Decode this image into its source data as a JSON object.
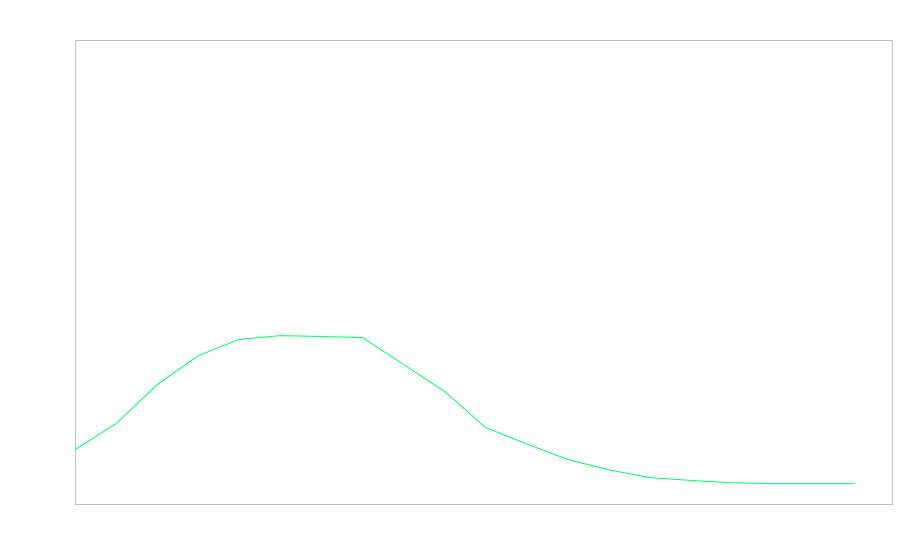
{
  "chart_data": {
    "type": "line",
    "title": "",
    "xlabel": "",
    "ylabel": "",
    "x": [
      0,
      1,
      2,
      3,
      4,
      5,
      6,
      7,
      8,
      9,
      10,
      11,
      12,
      13,
      14,
      15,
      16,
      17,
      18,
      19
    ],
    "series": [
      {
        "color": "#00ff66",
        "values": [
          11.9,
          17.5,
          25.9,
          32.1,
          35.6,
          36.4,
          36.2,
          36.0,
          30.2,
          24.4,
          16.6,
          13.1,
          9.7,
          7.5,
          5.8,
          5.2,
          4.7,
          4.5,
          4.5,
          4.5
        ]
      }
    ],
    "xlim": [
      0,
      19.93
    ],
    "ylim": [
      0,
      100
    ],
    "grid": false,
    "axes_ticks_visible": false,
    "frame_color": "#c0c0c0"
  }
}
